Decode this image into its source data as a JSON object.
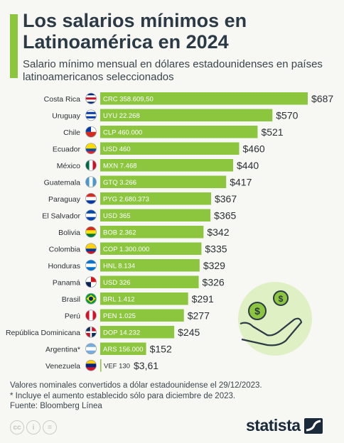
{
  "title": "Los salarios mínimos en Latinoamérica en 2024",
  "subtitle": "Salario mínimo mensual en dólares estadounidenses en países latinoamericanos seleccionados",
  "notes": [
    "Valores nominales convertidos a dólar estadounidense el 29/12/2023.",
    "* Incluye el aumento establecido sólo para diciembre de 2023.",
    "Fuente: Bloomberg Línea"
  ],
  "brand": "statista",
  "license_icons": [
    "cc-icon",
    "by-icon",
    "nd-icon"
  ],
  "colors": {
    "bar": "#8cc63f",
    "accent": "#8cc63f",
    "text": "#2b3a45",
    "background": "#f7f8f3"
  },
  "chart_data": {
    "type": "bar",
    "orientation": "horizontal",
    "xlim": [
      0,
      687
    ],
    "categories": [
      "Costa Rica",
      "Uruguay",
      "Chile",
      "Ecuador",
      "México",
      "Guatemala",
      "Paraguay",
      "El Salvador",
      "Bolivia",
      "Colombia",
      "Honduras",
      "Panamá",
      "Brasil",
      "Perú",
      "República Dominicana",
      "Argentina*",
      "Venezuela"
    ],
    "flags": [
      "costa-rica-flag",
      "uruguay-flag",
      "chile-flag",
      "ecuador-flag",
      "mexico-flag",
      "guatemala-flag",
      "paraguay-flag",
      "el-salvador-flag",
      "bolivia-flag",
      "colombia-flag",
      "honduras-flag",
      "panama-flag",
      "brasil-flag",
      "peru-flag",
      "dominicana-flag",
      "argentina-flag",
      "venezuela-flag"
    ],
    "local": [
      "CRC 358.609,50",
      "UYU 22.268",
      "CLP 460.000",
      "USD 460",
      "MXN 7.468",
      "GTQ 3.266",
      "PYG 2.680.373",
      "USD 365",
      "BOB 2.362",
      "COP 1.300.000",
      "HNL 8.134",
      "USD 326",
      "BRL 1.412",
      "PEN 1.025",
      "DOP 14.232",
      "ARS 156.000",
      "VEF 130"
    ],
    "values": [
      687,
      570,
      521,
      460,
      440,
      417,
      367,
      365,
      342,
      335,
      329,
      326,
      291,
      277,
      245,
      152,
      3.61
    ],
    "value_labels": [
      "$687",
      "$570",
      "$521",
      "$460",
      "$440",
      "$417",
      "$367",
      "$365",
      "$342",
      "$335",
      "$329",
      "$326",
      "$291",
      "$277",
      "$245",
      "$152",
      "$3,61"
    ]
  }
}
